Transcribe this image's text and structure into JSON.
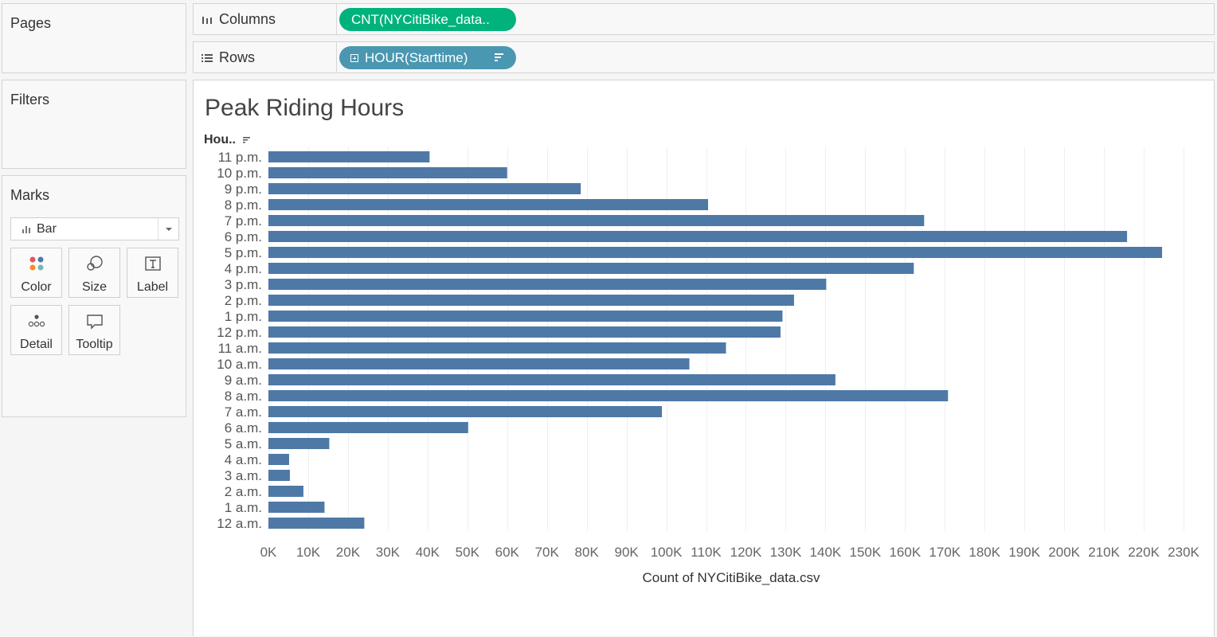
{
  "panels": {
    "pages": "Pages",
    "filters": "Filters",
    "marks": "Marks"
  },
  "marks": {
    "type": "Bar",
    "cards": [
      "Color",
      "Size",
      "Label",
      "Detail",
      "Tooltip"
    ]
  },
  "shelves": {
    "columns_label": "Columns",
    "columns_pill": "CNT(NYCitiBike_data..",
    "rows_label": "Rows",
    "rows_pill": "HOUR(Starttime)"
  },
  "colors": {
    "bar": "#4e79a7",
    "columns_pill": "#00b27c",
    "rows_pill": "#4a97b1"
  },
  "chart_data": {
    "type": "bar",
    "orientation": "horizontal",
    "title": "Peak Riding Hours",
    "row_header": "Hou..",
    "xlabel": "Count of NYCitiBike_data.csv",
    "xlim": [
      0,
      235000
    ],
    "x_ticks": [
      0,
      10000,
      20000,
      30000,
      40000,
      50000,
      60000,
      70000,
      80000,
      90000,
      100000,
      110000,
      120000,
      130000,
      140000,
      150000,
      160000,
      170000,
      180000,
      190000,
      200000,
      210000,
      220000,
      230000
    ],
    "x_tick_labels": [
      "0K",
      "10K",
      "20K",
      "30K",
      "40K",
      "50K",
      "60K",
      "70K",
      "80K",
      "90K",
      "100K",
      "110K",
      "120K",
      "130K",
      "140K",
      "150K",
      "160K",
      "170K",
      "180K",
      "190K",
      "200K",
      "210K",
      "220K",
      "230K"
    ],
    "grid": true,
    "categories": [
      "11 p.m.",
      "10 p.m.",
      "9 p.m.",
      "8 p.m.",
      "7 p.m.",
      "6 p.m.",
      "5 p.m.",
      "4 p.m.",
      "3 p.m.",
      "2 p.m.",
      "1 p.m.",
      "12 p.m.",
      "11 a.m.",
      "10 a.m.",
      "9 a.m.",
      "8 a.m.",
      "7 a.m.",
      "6 a.m.",
      "5 a.m.",
      "4 a.m.",
      "3 a.m.",
      "2 a.m.",
      "1 a.m.",
      "12 a.m."
    ],
    "values": [
      40500,
      60000,
      78500,
      110500,
      164800,
      215800,
      224600,
      162200,
      140200,
      132100,
      129200,
      128700,
      115000,
      105800,
      142500,
      170800,
      98900,
      50200,
      15300,
      5200,
      5400,
      8800,
      14100,
      24100
    ]
  }
}
